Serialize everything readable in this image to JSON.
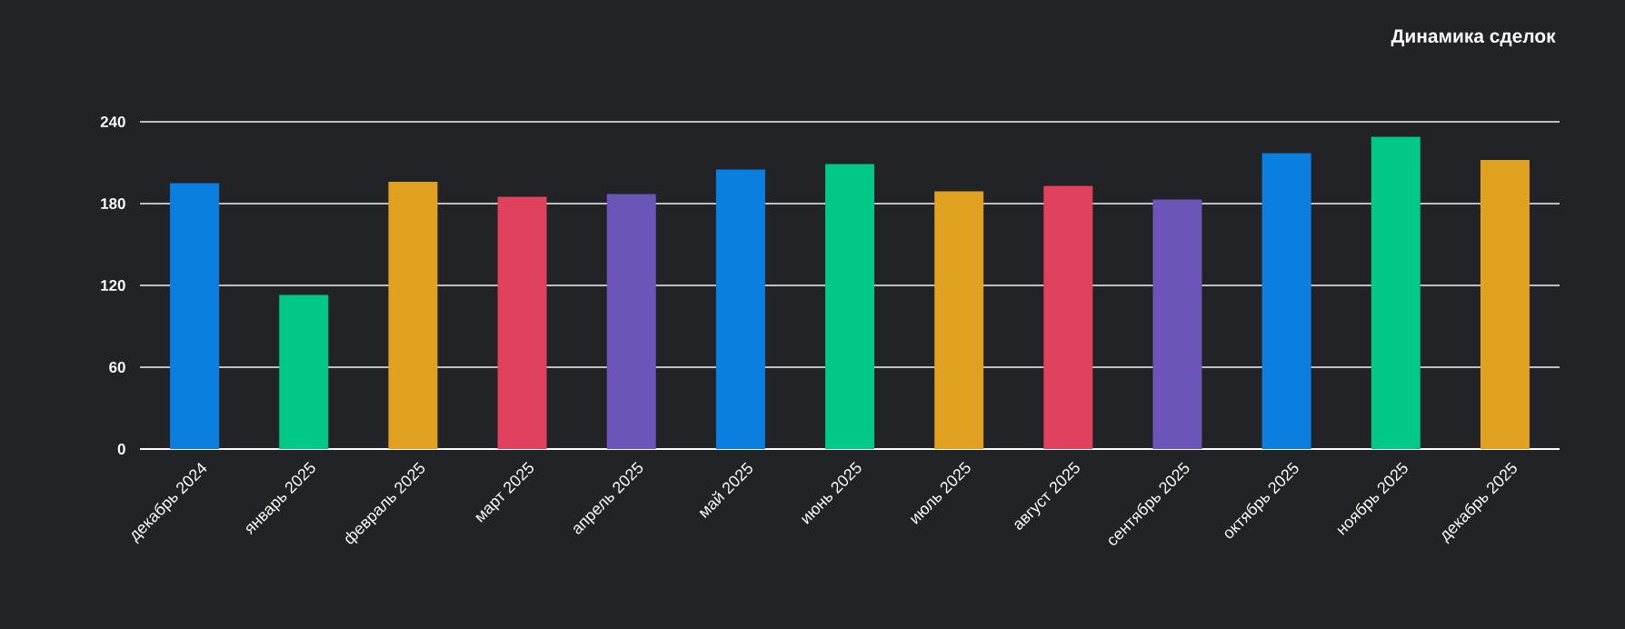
{
  "chart_data": {
    "type": "bar",
    "title": "Динамика сделок",
    "categories": [
      "декабрь 2024",
      "январь 2025",
      "февраль 2025",
      "март 2025",
      "апрель 2025",
      "май 2025",
      "июнь 2025",
      "июль 2025",
      "август 2025",
      "сентябрь 2025",
      "октябрь 2025",
      "ноябрь 2025",
      "декабрь 2025"
    ],
    "values": [
      195,
      113,
      196,
      185,
      187,
      205,
      209,
      189,
      193,
      183,
      217,
      229,
      212
    ],
    "colors": [
      "#0a7fe0",
      "#00c887",
      "#e0a020",
      "#e0425e",
      "#6b55b8",
      "#0a7fe0",
      "#00c887",
      "#e0a020",
      "#e0425e",
      "#6b55b8",
      "#0a7fe0",
      "#00c887",
      "#e0a020"
    ],
    "ylim": [
      0,
      240
    ],
    "yticks": [
      0,
      60,
      120,
      180,
      240
    ],
    "grid": "y"
  }
}
